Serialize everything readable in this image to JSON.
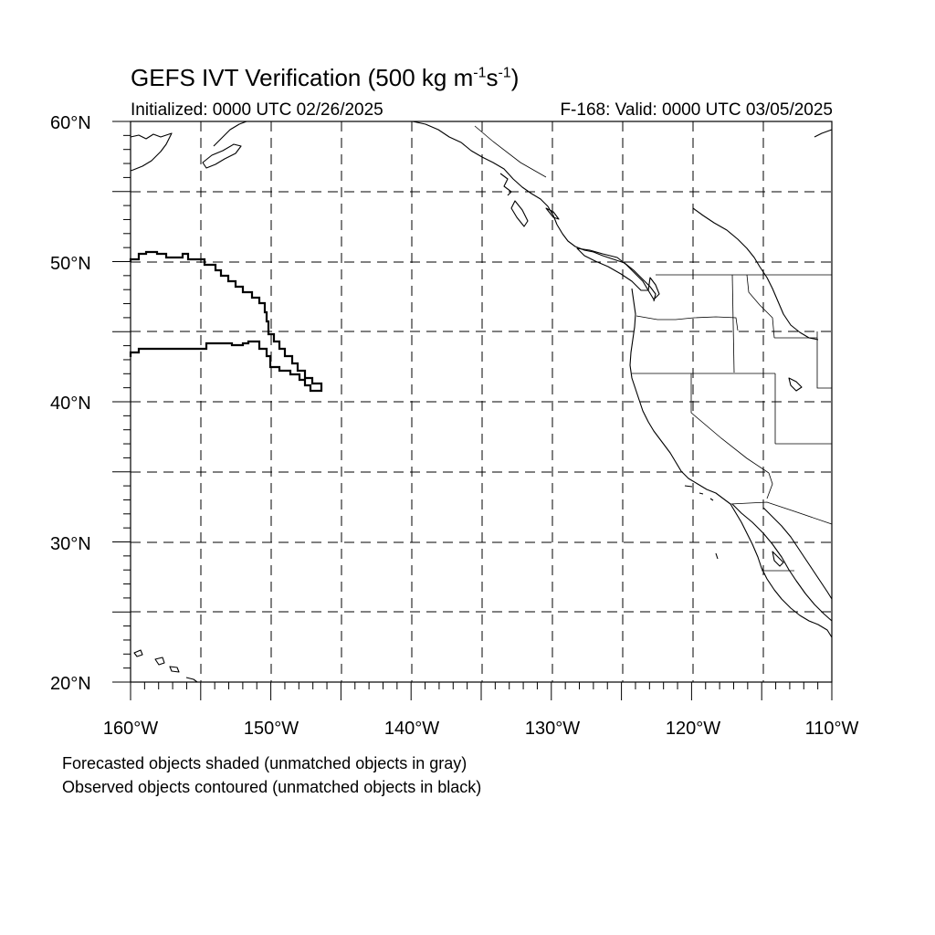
{
  "header": {
    "title_main": "GEFS IVT Verification (500 kg m",
    "title_sup1": "-1",
    "title_mid": "s",
    "title_sup2": "-1",
    "title_end": ")",
    "initialized": "Initialized: 0000 UTC 02/26/2025",
    "valid": "F-168: Valid: 0000 UTC 03/05/2025"
  },
  "map": {
    "lon_range": [
      -160,
      -110
    ],
    "lat_range": [
      20,
      60
    ],
    "lat_labels": [
      "60°N",
      "50°N",
      "40°N",
      "30°N",
      "20°N"
    ],
    "lon_labels": [
      "160°W",
      "150°W",
      "140°W",
      "130°W",
      "120°W",
      "110°W"
    ],
    "gridlines": "dashed, every 5°"
  },
  "notes": {
    "forecast": "Forecasted objects shaded (unmatched objects in gray)",
    "observed": "Observed objects contoured (unmatched objects in black)"
  }
}
